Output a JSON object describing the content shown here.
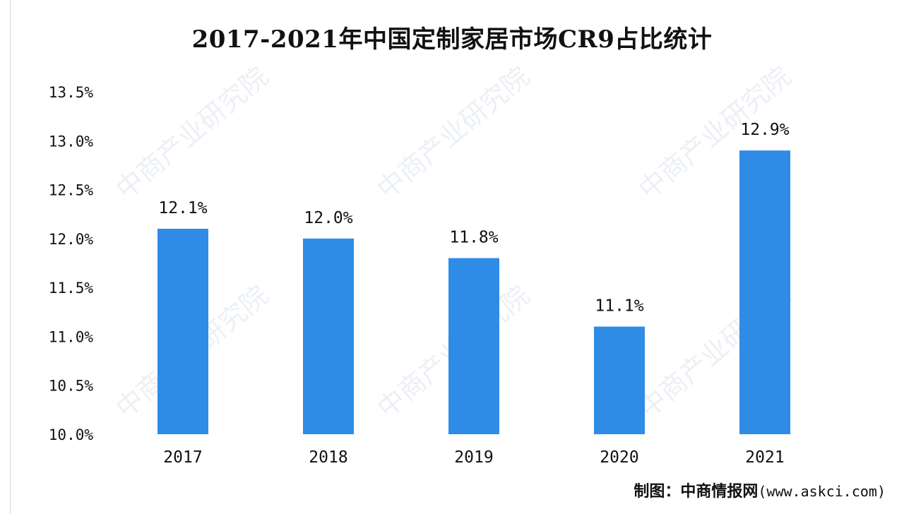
{
  "chart_data": {
    "type": "bar",
    "title": "2017-2021年中国定制家居市场CR9占比统计",
    "categories": [
      "2017",
      "2018",
      "2019",
      "2020",
      "2021"
    ],
    "values": [
      12.1,
      12.0,
      11.8,
      11.1,
      12.9
    ],
    "data_labels": [
      "12.1%",
      "12.0%",
      "11.8%",
      "11.1%",
      "12.9%"
    ],
    "y_ticks": [
      10.0,
      10.5,
      11.0,
      11.5,
      12.0,
      12.5,
      13.0,
      13.5
    ],
    "y_tick_labels": [
      "10.0%",
      "10.5%",
      "11.0%",
      "11.5%",
      "12.0%",
      "12.5%",
      "13.0%",
      "13.5%"
    ],
    "ylim": [
      10.0,
      13.5
    ],
    "xlabel": "",
    "ylabel": "",
    "grid": false,
    "legend": "none",
    "bar_color": "#2e8ce6"
  },
  "source": {
    "label": "制图：中商情报网",
    "url": "(www.askci.com)"
  },
  "watermark_text": "中商产业研究院"
}
